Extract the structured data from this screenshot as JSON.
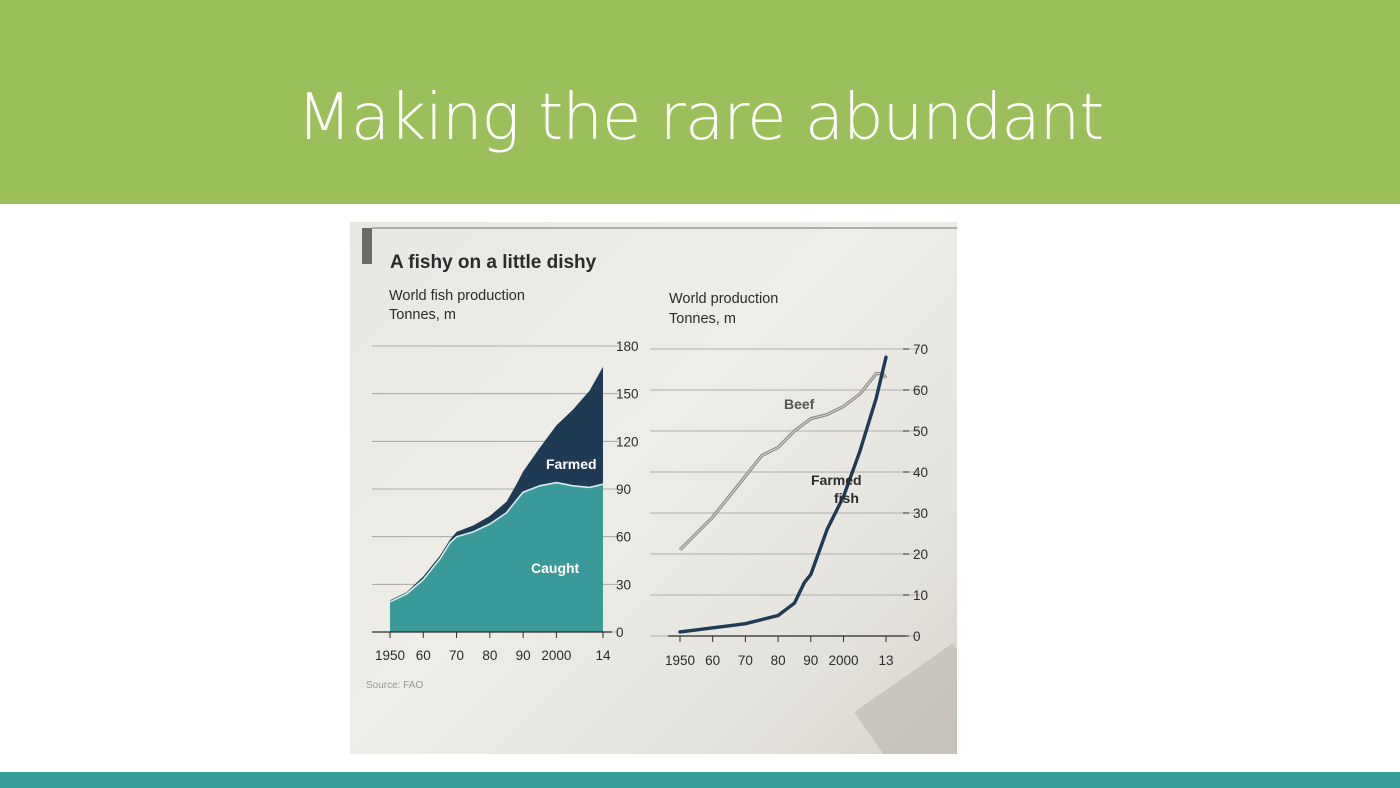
{
  "slide": {
    "title": "Making the rare abundant"
  },
  "colors": {
    "header_green": "#9bbf5a",
    "footer_teal": "#3a9e98",
    "caught": "#3a9a99",
    "farmed": "#1e3a54",
    "beef": "#8a8a86",
    "farmed_fish_line": "#1e3a54"
  },
  "chart_data": [
    {
      "type": "area",
      "heading": "A fishy on a little dishy",
      "title": "World fish production",
      "subtitle": "Tonnes, m",
      "x_ticks": [
        "1950",
        "60",
        "70",
        "80",
        "90",
        "2000",
        "14"
      ],
      "y_ticks": [
        "0",
        "30",
        "60",
        "90",
        "120",
        "150",
        "180"
      ],
      "ylim": [
        0,
        180
      ],
      "xlim": [
        1950,
        2014
      ],
      "area_labels": {
        "farmed": "Farmed",
        "caught": "Caught"
      },
      "x": [
        1950,
        1955,
        1960,
        1965,
        1968,
        1970,
        1975,
        1980,
        1985,
        1988,
        1990,
        1995,
        2000,
        2005,
        2010,
        2014
      ],
      "series": [
        {
          "key": "caught",
          "values": [
            19,
            24,
            33,
            46,
            56,
            60,
            63,
            68,
            75,
            83,
            88,
            92,
            94,
            92,
            91,
            93
          ]
        },
        {
          "key": "farmed",
          "values": [
            1,
            1,
            2,
            2,
            2,
            3,
            4,
            5,
            7,
            10,
            13,
            24,
            36,
            48,
            61,
            74
          ]
        }
      ],
      "source": "Source: FAO"
    },
    {
      "type": "line",
      "title": "World production",
      "subtitle": "Tonnes, m",
      "x_ticks": [
        "1950",
        "60",
        "70",
        "80",
        "90",
        "2000",
        "13"
      ],
      "y_ticks": [
        "0",
        "10",
        "20",
        "30",
        "40",
        "50",
        "60",
        "70"
      ],
      "ylim": [
        0,
        70
      ],
      "xlim": [
        1950,
        2013
      ],
      "series": [
        {
          "name": "Beef",
          "key": "beef",
          "x": [
            1950,
            1955,
            1960,
            1965,
            1970,
            1975,
            1980,
            1985,
            1990,
            1995,
            2000,
            2005,
            2008,
            2010,
            2012,
            2013
          ],
          "values": [
            21,
            25,
            29,
            34,
            39,
            44,
            46,
            50,
            53,
            54,
            56,
            59,
            62,
            64,
            64,
            63
          ]
        },
        {
          "name": "Farmed fish",
          "key": "farmed",
          "x": [
            1950,
            1955,
            1960,
            1965,
            1970,
            1975,
            1980,
            1985,
            1988,
            1990,
            1995,
            2000,
            2005,
            2010,
            2013
          ],
          "values": [
            1,
            1.5,
            2,
            2.5,
            3,
            4,
            5,
            8,
            13,
            15,
            26,
            34,
            45,
            58,
            68
          ]
        }
      ],
      "series_labels": {
        "beef": "Beef",
        "farmed_line1": "Farmed",
        "farmed_line2": "fish"
      }
    }
  ]
}
